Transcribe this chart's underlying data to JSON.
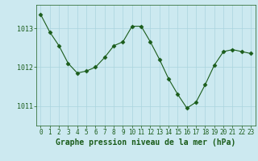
{
  "x": [
    0,
    1,
    2,
    3,
    4,
    5,
    6,
    7,
    8,
    9,
    10,
    11,
    12,
    13,
    14,
    15,
    16,
    17,
    18,
    19,
    20,
    21,
    22,
    23
  ],
  "y": [
    1013.35,
    1012.9,
    1012.55,
    1012.1,
    1011.85,
    1011.9,
    1012.0,
    1012.25,
    1012.55,
    1012.65,
    1013.05,
    1013.05,
    1012.65,
    1012.2,
    1011.7,
    1011.3,
    1010.95,
    1011.1,
    1011.55,
    1012.05,
    1012.4,
    1012.45,
    1012.4,
    1012.35
  ],
  "line_color": "#1a5c1a",
  "marker": "D",
  "marker_size": 2.5,
  "background_color": "#cce9f0",
  "grid_color": "#aad4de",
  "xlabel": "Graphe pression niveau de la mer (hPa)",
  "xlabel_fontsize": 7,
  "xlabel_color": "#1a5c1a",
  "yticks": [
    1011,
    1012,
    1013
  ],
  "xticks": [
    0,
    1,
    2,
    3,
    4,
    5,
    6,
    7,
    8,
    9,
    10,
    11,
    12,
    13,
    14,
    15,
    16,
    17,
    18,
    19,
    20,
    21,
    22,
    23
  ],
  "ylim": [
    1010.5,
    1013.6
  ],
  "xlim": [
    -0.5,
    23.5
  ],
  "tick_color": "#1a5c1a",
  "tick_fontsize": 5.5,
  "ytick_fontsize": 6
}
